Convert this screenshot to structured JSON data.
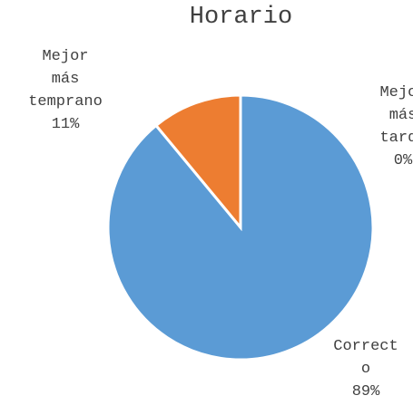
{
  "chart_data": {
    "type": "pie",
    "title": "Horario",
    "categories": [
      "Correcto",
      "Mejor más temprano",
      "Mejor más tarde"
    ],
    "values": [
      89,
      11,
      0
    ],
    "value_labels": [
      "89%",
      "11%",
      "0%"
    ],
    "colors": [
      "#5B9BD5",
      "#ED7D31",
      "#A5A5A5"
    ]
  }
}
